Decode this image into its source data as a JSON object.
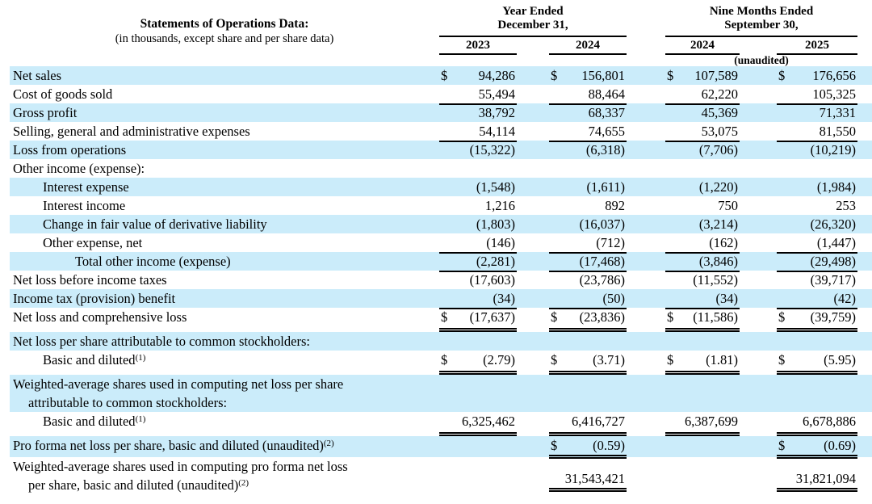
{
  "currency_symbol": "$",
  "colors": {
    "stripe": "#cbecfa",
    "text": "#000000",
    "rule": "#000000"
  },
  "header": {
    "title": "Statements of Operations Data:",
    "subtitle": "(in thousands, except share and per share data)",
    "groups": [
      {
        "line1": "Year Ended",
        "line2": "December 31,"
      },
      {
        "line1": "Nine Months Ended",
        "line2": "September 30,"
      }
    ],
    "years": [
      "2023",
      "2024",
      "2024",
      "2025"
    ],
    "unaudited": "(unaudited)"
  },
  "rows": [
    {
      "label": "Net sales",
      "indent": 0,
      "shade": true,
      "dollar": true,
      "values": [
        "94,286",
        "156,801",
        "107,589",
        "176,656"
      ],
      "rule": "none"
    },
    {
      "label": "Cost of goods sold",
      "indent": 0,
      "shade": false,
      "values": [
        "55,494",
        "88,464",
        "62,220",
        "105,325"
      ],
      "rule": "single"
    },
    {
      "label": "Gross profit",
      "indent": 0,
      "shade": true,
      "values": [
        "38,792",
        "68,337",
        "45,369",
        "71,331"
      ],
      "rule": "none"
    },
    {
      "label": "Selling, general and administrative expenses",
      "indent": 0,
      "shade": false,
      "values": [
        "54,114",
        "74,655",
        "53,075",
        "81,550"
      ],
      "rule": "single"
    },
    {
      "label": "Loss from operations",
      "indent": 0,
      "shade": true,
      "values": [
        "(15,322)",
        "(6,318)",
        "(7,706)",
        "(10,219)"
      ],
      "rule": "none"
    },
    {
      "label": "Other income (expense):",
      "indent": 0,
      "shade": false,
      "values": [
        "",
        "",
        "",
        ""
      ],
      "rule": "none"
    },
    {
      "label": "Interest expense",
      "indent": 1,
      "shade": true,
      "values": [
        "(1,548)",
        "(1,611)",
        "(1,220)",
        "(1,984)"
      ],
      "rule": "none"
    },
    {
      "label": "Interest income",
      "indent": 1,
      "shade": false,
      "values": [
        "1,216",
        "892",
        "750",
        "253"
      ],
      "rule": "none"
    },
    {
      "label": "Change in fair value of derivative liability",
      "indent": 1,
      "shade": true,
      "values": [
        "(1,803)",
        "(16,037)",
        "(3,214)",
        "(26,320)"
      ],
      "rule": "none"
    },
    {
      "label": "Other expense, net",
      "indent": 1,
      "shade": false,
      "values": [
        "(146)",
        "(712)",
        "(162)",
        "(1,447)"
      ],
      "rule": "single"
    },
    {
      "label": "Total other income (expense)",
      "indent": 2,
      "shade": true,
      "values": [
        "(2,281)",
        "(17,468)",
        "(3,846)",
        "(29,498)"
      ],
      "rule": "single"
    },
    {
      "label": "Net loss before income taxes",
      "indent": 0,
      "shade": false,
      "values": [
        "(17,603)",
        "(23,786)",
        "(11,552)",
        "(39,717)"
      ],
      "rule": "none"
    },
    {
      "label": "Income tax (provision) benefit",
      "indent": 0,
      "shade": true,
      "values": [
        "(34)",
        "(50)",
        "(34)",
        "(42)"
      ],
      "rule": "single"
    },
    {
      "label": "Net loss and comprehensive loss",
      "indent": 0,
      "shade": false,
      "dollar": true,
      "values": [
        "(17,637)",
        "(23,836)",
        "(11,586)",
        "(39,759)"
      ],
      "rule": "double"
    },
    {
      "label": "Net loss per share attributable to common stockholders:",
      "indent": 0,
      "shade": true,
      "values": [
        "",
        "",
        "",
        ""
      ],
      "rule": "none"
    },
    {
      "label": "Basic and diluted",
      "sup": "(1)",
      "indent": 1,
      "shade": false,
      "dollar": true,
      "values": [
        "(2.79)",
        "(3.71)",
        "(1.81)",
        "(5.95)"
      ],
      "rule": "double"
    },
    {
      "label": "Weighted-average shares used in computing net loss per share",
      "label2": "attributable to common stockholders:",
      "indent": 0,
      "shade": true,
      "values": [
        "",
        "",
        "",
        ""
      ],
      "rule": "none"
    },
    {
      "label": "Basic and diluted",
      "sup": "(1)",
      "indent": 1,
      "shade": false,
      "values": [
        "6,325,462",
        "6,416,727",
        "6,387,699",
        "6,678,886"
      ],
      "rule": "double"
    },
    {
      "label": "Pro forma net loss per share, basic and diluted (unaudited)",
      "sup": "(2)",
      "indent": 0,
      "shade": true,
      "dollar": [
        false,
        true,
        false,
        true
      ],
      "values": [
        "",
        "(0.59)",
        "",
        "(0.69)"
      ],
      "rule": "double",
      "rule_cols": [
        false,
        true,
        false,
        true
      ]
    },
    {
      "label": "Weighted-average shares used in computing pro forma net loss",
      "label2": "per share, basic and diluted (unaudited)",
      "sup2": "(2)",
      "indent": 0,
      "shade": false,
      "values": [
        "",
        "31,543,421",
        "",
        "31,821,094"
      ],
      "rule": "double",
      "rule_cols": [
        false,
        true,
        false,
        true
      ]
    }
  ]
}
